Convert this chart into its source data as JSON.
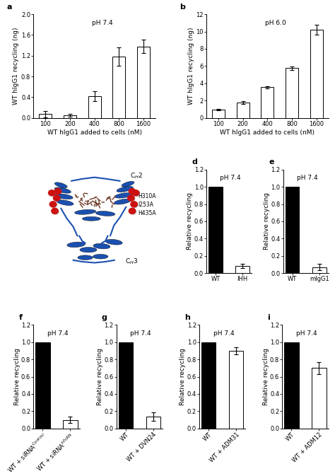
{
  "panel_a": {
    "label": "a",
    "title": "pH 7.4",
    "categories": [
      "100",
      "200",
      "400",
      "800",
      "1600"
    ],
    "values": [
      0.07,
      0.05,
      0.42,
      1.18,
      1.38
    ],
    "errors": [
      0.06,
      0.03,
      0.1,
      0.18,
      0.13
    ],
    "ylabel": "WT hIgG1 recycling (ng)",
    "xlabel": "WT hIgG1 added to cells (nM)",
    "ylim": [
      0,
      2.0
    ],
    "yticks": [
      0.0,
      0.4,
      0.8,
      1.2,
      1.6,
      2.0
    ]
  },
  "panel_b": {
    "label": "b",
    "title": "pH 6.0",
    "categories": [
      "100",
      "200",
      "400",
      "800",
      "1600"
    ],
    "values": [
      0.95,
      1.75,
      3.55,
      5.75,
      10.2
    ],
    "errors": [
      0.1,
      0.18,
      0.12,
      0.22,
      0.55
    ],
    "ylabel": "WT hIgG1 recycling (ng)",
    "xlabel": "WT hIgG1 added to cells (nM)",
    "ylim": [
      0,
      12
    ],
    "yticks": [
      0,
      2,
      4,
      6,
      8,
      10,
      12
    ]
  },
  "panel_d": {
    "label": "d",
    "title": "pH 7.4",
    "categories": [
      "WT",
      "IHH"
    ],
    "values": [
      1.0,
      0.08
    ],
    "errors": [
      0.0,
      0.025
    ],
    "fill": [
      "black",
      "white"
    ],
    "ylabel": "Relative recycling",
    "ylim": [
      0,
      1.2
    ],
    "yticks": [
      0.0,
      0.2,
      0.4,
      0.6,
      0.8,
      1.0,
      1.2
    ]
  },
  "panel_e": {
    "label": "e",
    "title": "pH 7.4",
    "categories": [
      "WT",
      "mIgG1"
    ],
    "values": [
      1.0,
      0.07
    ],
    "errors": [
      0.0,
      0.04
    ],
    "fill": [
      "black",
      "white"
    ],
    "ylabel": "Relative recycling",
    "ylim": [
      0,
      1.2
    ],
    "yticks": [
      0.0,
      0.2,
      0.4,
      0.6,
      0.8,
      1.0,
      1.2
    ]
  },
  "panel_f": {
    "label": "f",
    "title": "pH 7.4",
    "cat_base": [
      "WT + siRNA",
      "WT + siRNA"
    ],
    "cat_super": [
      "Control",
      "hFcRN"
    ],
    "values": [
      1.0,
      0.1
    ],
    "errors": [
      0.0,
      0.04
    ],
    "fill": [
      "black",
      "white"
    ],
    "ylabel": "Relative recycling",
    "ylim": [
      0,
      1.2
    ],
    "yticks": [
      0.0,
      0.2,
      0.4,
      0.6,
      0.8,
      1.0,
      1.2
    ]
  },
  "panel_g": {
    "label": "g",
    "title": "pH 7.4",
    "categories": [
      "WT",
      "WT + DVN24"
    ],
    "values": [
      1.0,
      0.14
    ],
    "errors": [
      0.0,
      0.05
    ],
    "fill": [
      "black",
      "white"
    ],
    "ylabel": "Relative recycling",
    "ylim": [
      0,
      1.2
    ],
    "yticks": [
      0.0,
      0.2,
      0.4,
      0.6,
      0.8,
      1.0,
      1.2
    ]
  },
  "panel_h": {
    "label": "h",
    "title": "pH 7.4",
    "categories": [
      "WT",
      "WT + ADM31"
    ],
    "values": [
      1.0,
      0.9
    ],
    "errors": [
      0.0,
      0.04
    ],
    "fill": [
      "black",
      "white"
    ],
    "ylabel": "Relative recycling",
    "ylim": [
      0,
      1.2
    ],
    "yticks": [
      0.0,
      0.2,
      0.4,
      0.6,
      0.8,
      1.0,
      1.2
    ]
  },
  "panel_i": {
    "label": "i",
    "title": "pH 7.4",
    "categories": [
      "WT",
      "WT + ADM12"
    ],
    "values": [
      1.0,
      0.7
    ],
    "errors": [
      0.0,
      0.07
    ],
    "fill": [
      "black",
      "white"
    ],
    "ylabel": "Relative recycling",
    "ylim": [
      0,
      1.2
    ],
    "yticks": [
      0.0,
      0.2,
      0.4,
      0.6,
      0.8,
      1.0,
      1.2
    ]
  },
  "bar_width": 0.52,
  "bar_color": "white",
  "bar_edge_color": "black",
  "error_color": "black",
  "font_size": 6.5,
  "label_font_size": 8,
  "tick_font_size": 6.0,
  "background_color": "white",
  "blue_ribbon": "#1a50b0",
  "red_sphere": "#cc1111",
  "brown_stick": "#6b3520"
}
